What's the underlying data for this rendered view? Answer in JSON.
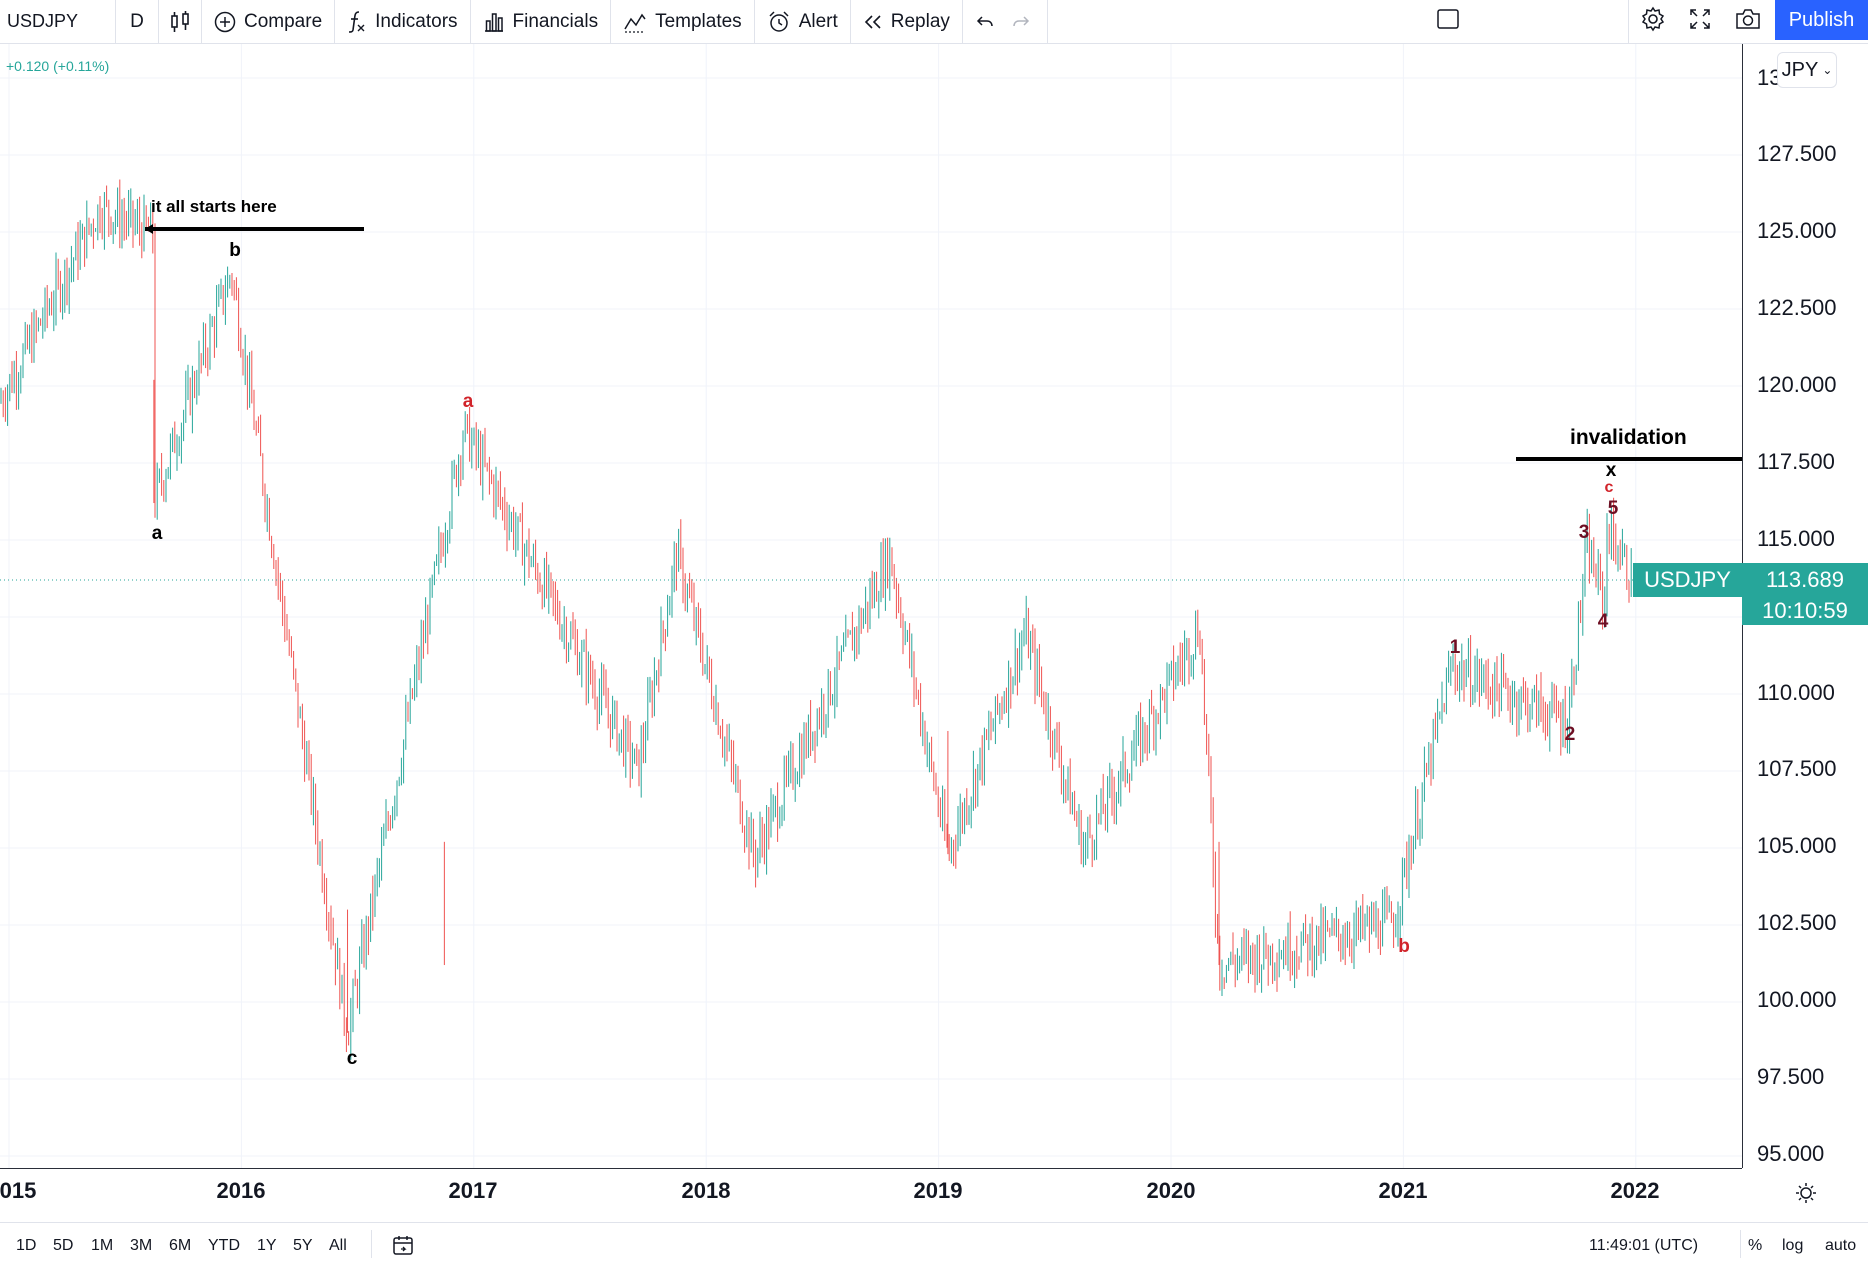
{
  "toolbar": {
    "symbol": "USDJPY",
    "interval": "D",
    "compare_label": "Compare",
    "indicators_label": "Indicators",
    "financials_label": "Financials",
    "templates_label": "Templates",
    "alert_label": "Alert",
    "replay_label": "Replay",
    "publish_label": "Publish"
  },
  "legend": {
    "change": "+0.120 (+0.11%)"
  },
  "currency": "JPY",
  "price_axis": {
    "ticks": [
      "127.500",
      "125.000",
      "122.500",
      "120.000",
      "117.500",
      "115.000",
      "110.000",
      "107.500",
      "105.000",
      "102.500",
      "100.000",
      "97.500",
      "95.000"
    ],
    "top_partial": "130.000",
    "last_price": "113.689",
    "countdown": "10:10:59",
    "symbol_tag": "USDJPY"
  },
  "time_axis": {
    "labels": [
      "015",
      "2016",
      "2017",
      "2018",
      "2019",
      "2020",
      "2021",
      "2022"
    ]
  },
  "annotations": {
    "starts_here": "it all starts here",
    "invalidation": "invalidation"
  },
  "wave_labels": [
    {
      "text": "b",
      "color": "#000000"
    },
    {
      "text": "a",
      "color": "#000000"
    },
    {
      "text": "c",
      "color": "#000000"
    },
    {
      "text": "a",
      "color": "#d1232a"
    },
    {
      "text": "b",
      "color": "#d1232a"
    },
    {
      "text": "1",
      "color": "#6d0f23"
    },
    {
      "text": "2",
      "color": "#6d0f23"
    },
    {
      "text": "3",
      "color": "#6d0f23"
    },
    {
      "text": "4",
      "color": "#6d0f23"
    },
    {
      "text": "5",
      "color": "#6d0f23"
    },
    {
      "text": "c",
      "color": "#d1232a"
    },
    {
      "text": "x",
      "color": "#000000"
    }
  ],
  "bottom_bar": {
    "ranges": [
      "1D",
      "5D",
      "1M",
      "3M",
      "6M",
      "YTD",
      "1Y",
      "5Y",
      "All"
    ],
    "clock": "11:49:01 (UTC)",
    "percent": "%",
    "log": "log",
    "auto": "auto"
  },
  "colors": {
    "up": "#26a69a",
    "down": "#ef5350",
    "accent": "#2962ff"
  },
  "chart_data": {
    "type": "candlestick",
    "symbol": "USDJPY",
    "interval": "D",
    "y_range": [
      95.0,
      130.0
    ],
    "x_range": [
      "2015",
      "2022"
    ],
    "last_price": 113.689,
    "key_points": [
      {
        "date": "2015-06",
        "price": 125.8
      },
      {
        "date": "2015-08",
        "price": 124.9
      },
      {
        "date": "2015-08",
        "price": 116.2
      },
      {
        "date": "2015-12",
        "price": 123.7
      },
      {
        "date": "2016-06",
        "price": 99.0
      },
      {
        "date": "2016-12",
        "price": 118.6
      },
      {
        "date": "2017-09",
        "price": 107.5
      },
      {
        "date": "2017-11",
        "price": 114.6
      },
      {
        "date": "2018-03",
        "price": 104.7
      },
      {
        "date": "2018-10",
        "price": 114.5
      },
      {
        "date": "2019-01",
        "price": 104.8
      },
      {
        "date": "2019-05",
        "price": 112.0
      },
      {
        "date": "2019-08",
        "price": 105.0
      },
      {
        "date": "2020-02",
        "price": 112.2
      },
      {
        "date": "2020-03",
        "price": 101.2
      },
      {
        "date": "2020-12",
        "price": 102.6
      },
      {
        "date": "2021-03",
        "price": 110.9
      },
      {
        "date": "2021-09",
        "price": 109.1
      },
      {
        "date": "2021-10",
        "price": 114.7
      },
      {
        "date": "2021-11",
        "price": 112.8
      },
      {
        "date": "2021-11",
        "price": 115.5
      },
      {
        "date": "2021-12",
        "price": 113.7
      }
    ]
  }
}
